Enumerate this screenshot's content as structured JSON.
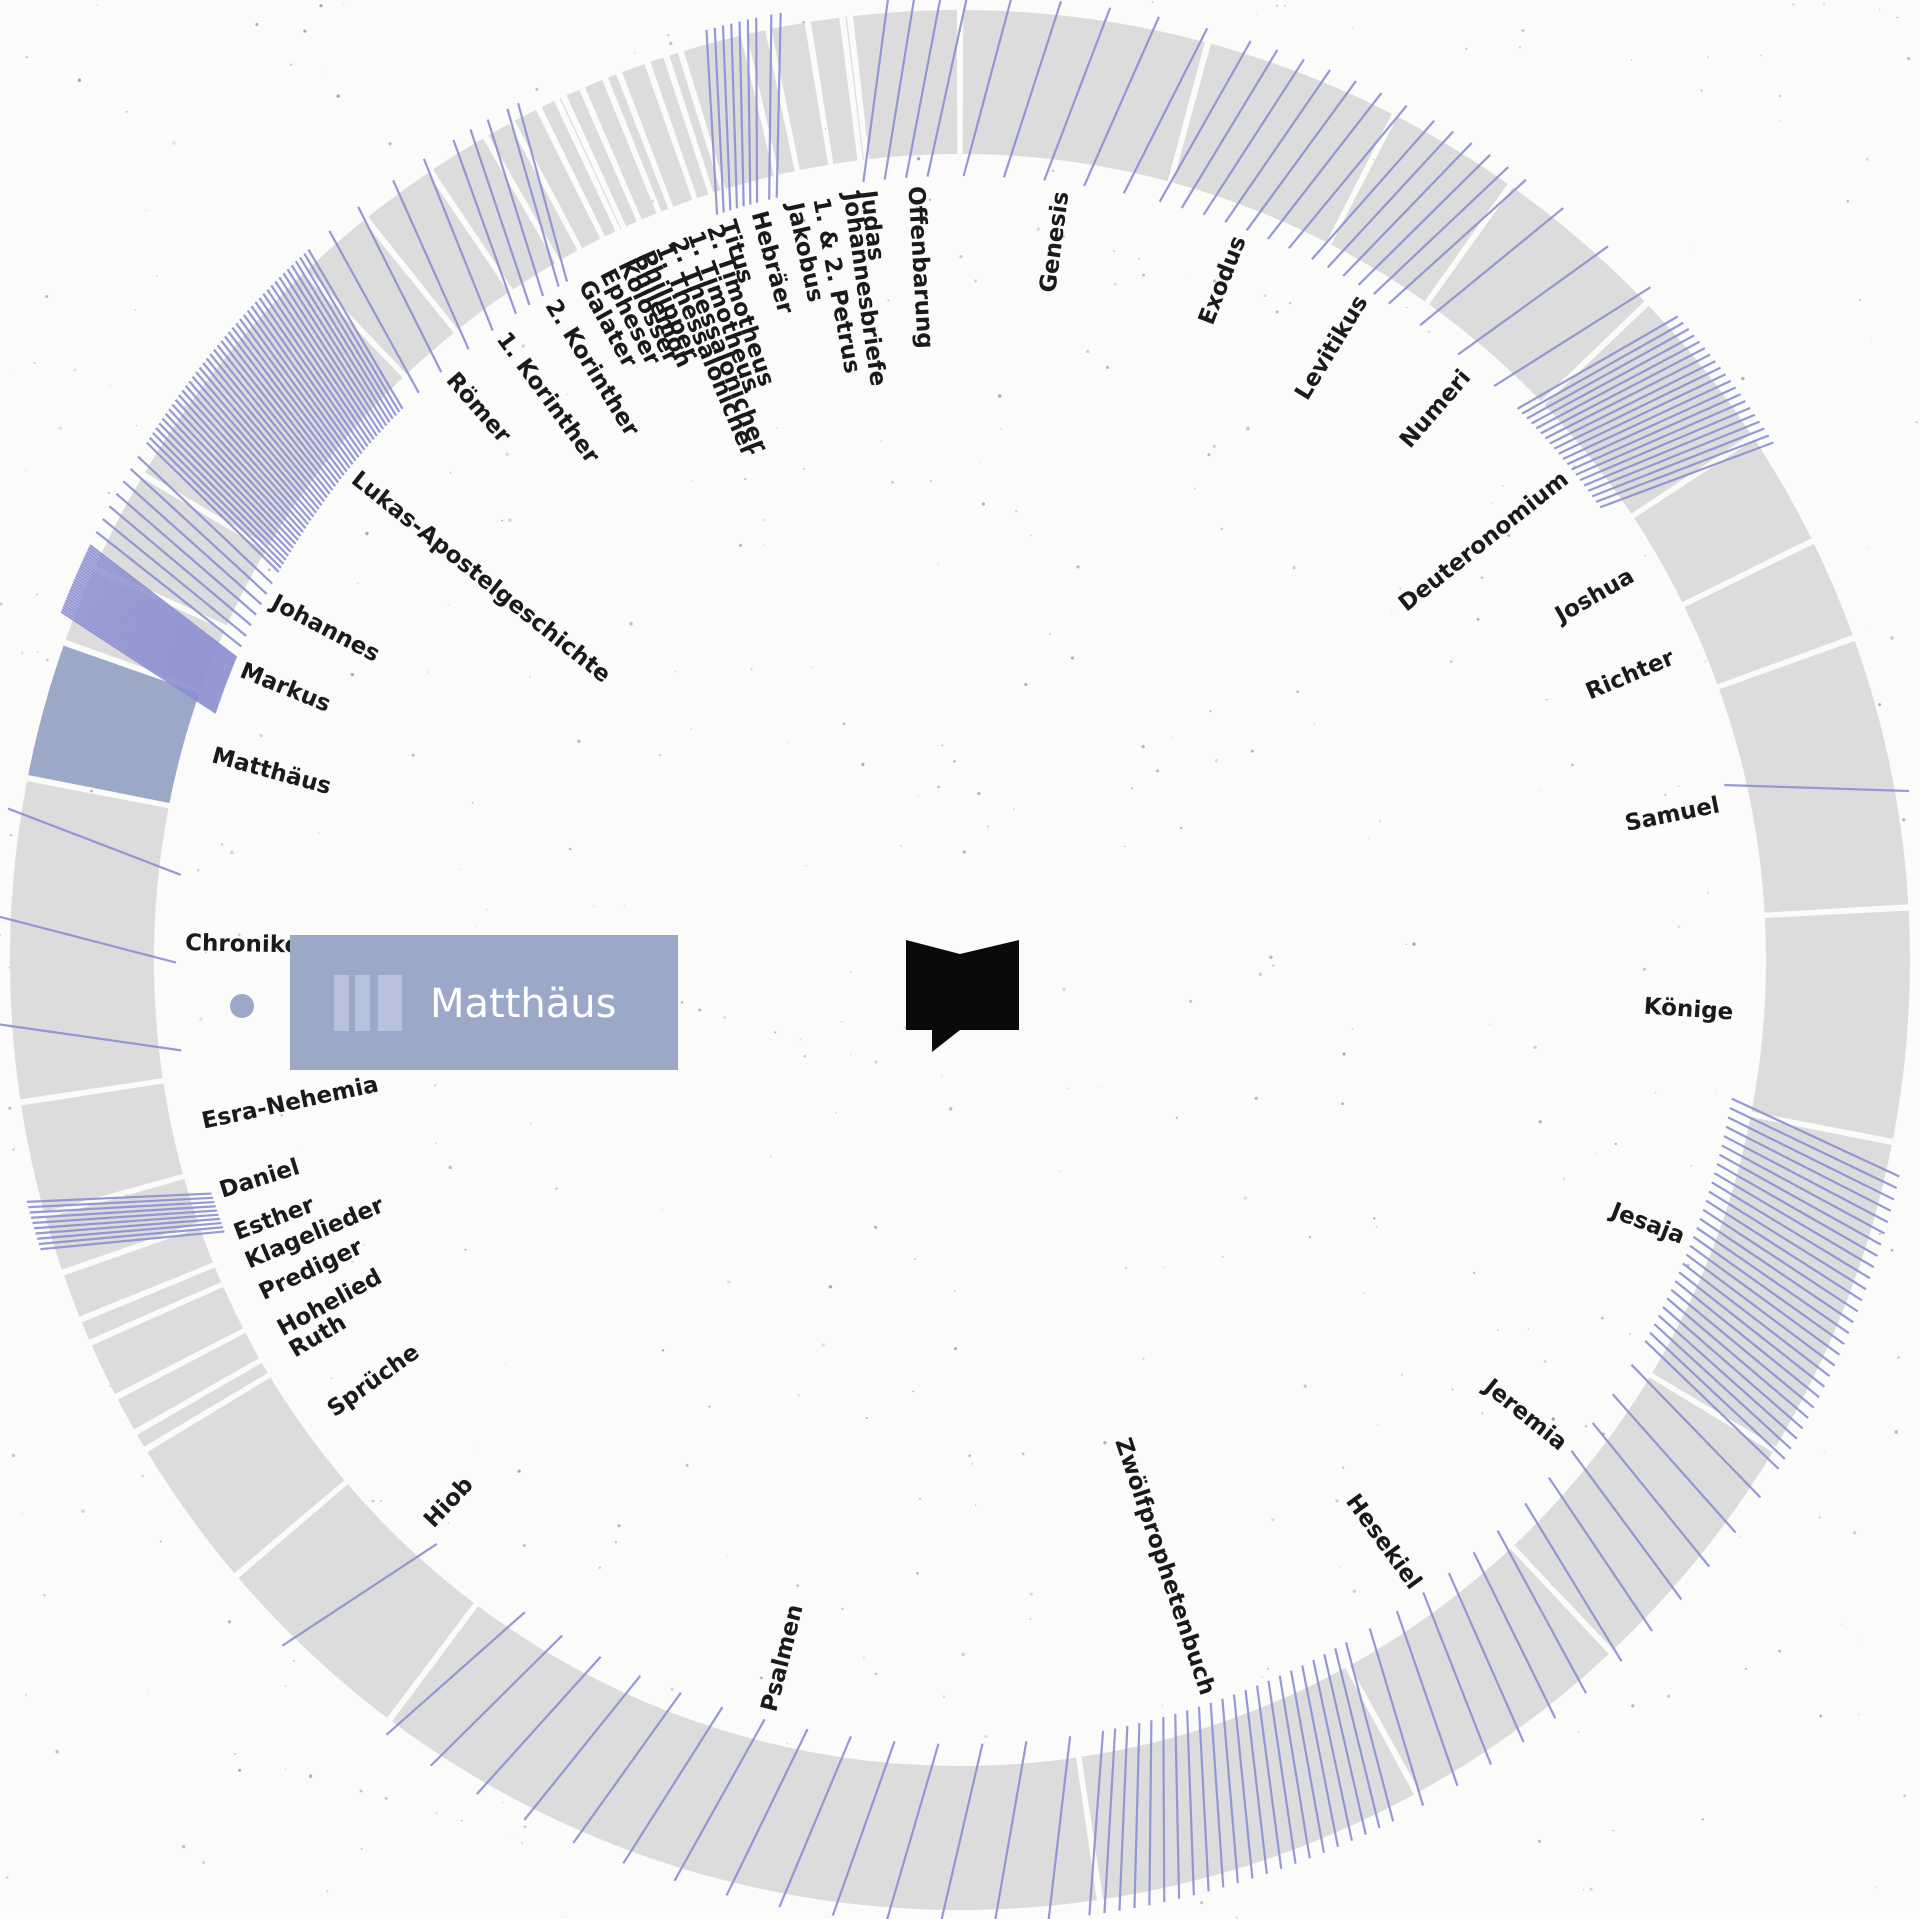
{
  "selected": "Matthäus",
  "colors": {
    "segment": "#dcdcdc",
    "active": "#9ba8c7",
    "reference": "#8b8fd0"
  },
  "icons": {
    "center": "open-book-icon",
    "callout": "book-stack-icon"
  },
  "chart_data": {
    "type": "radial-arc",
    "books": [
      {
        "name": "Genesis",
        "weight": 50
      },
      {
        "name": "Exodus",
        "weight": 40
      },
      {
        "name": "Levitikus",
        "weight": 27
      },
      {
        "name": "Numeri",
        "weight": 36
      },
      {
        "name": "Deuteronomium",
        "weight": 34
      },
      {
        "name": "Joshua",
        "weight": 24
      },
      {
        "name": "Richter",
        "weight": 21
      },
      {
        "name": "Samuel",
        "weight": 55
      },
      {
        "name": "Könige",
        "weight": 47
      },
      {
        "name": "Jesaja",
        "weight": 66
      },
      {
        "name": "Jeremia",
        "weight": 52
      },
      {
        "name": "Hesekiel",
        "weight": 48
      },
      {
        "name": "Zwölfprophetenbuch",
        "weight": 67
      },
      {
        "name": "Psalmen",
        "weight": 150
      },
      {
        "name": "Hiob",
        "weight": 42
      },
      {
        "name": "Sprüche",
        "weight": 31
      },
      {
        "name": "Ruth",
        "weight": 4
      },
      {
        "name": "Hohelied",
        "weight": 8
      },
      {
        "name": "Prediger",
        "weight": 12
      },
      {
        "name": "Klagelieder",
        "weight": 5
      },
      {
        "name": "Esther",
        "weight": 10
      },
      {
        "name": "Daniel",
        "weight": 12
      },
      {
        "name": "Esra-Nehemia",
        "weight": 23
      },
      {
        "name": "Chroniken",
        "weight": 65
      },
      {
        "name": "Matthäus",
        "weight": 28
      },
      {
        "name": "Markus",
        "weight": 16
      },
      {
        "name": "Johannes",
        "weight": 21
      },
      {
        "name": "Lukas-Apostelgeschichte",
        "weight": 52
      },
      {
        "name": "Römer",
        "weight": 16
      },
      {
        "name": "1. Korinther",
        "weight": 16
      },
      {
        "name": "2. Korinther",
        "weight": 13
      },
      {
        "name": "Galater",
        "weight": 6
      },
      {
        "name": "Epheser",
        "weight": 6
      },
      {
        "name": "Kolosser",
        "weight": 4
      },
      {
        "name": "Philemon",
        "weight": 1.5
      },
      {
        "name": "Philipper",
        "weight": 4
      },
      {
        "name": "1. Thessalonicher",
        "weight": 5
      },
      {
        "name": "2. Thessalonicher",
        "weight": 3
      },
      {
        "name": "1. Timotheus",
        "weight": 6
      },
      {
        "name": "2. Timotheus",
        "weight": 4
      },
      {
        "name": "Titus",
        "weight": 3
      },
      {
        "name": "Hebräer",
        "weight": 13
      },
      {
        "name": "Jakobus",
        "weight": 5
      },
      {
        "name": "1. & 2. Petrus",
        "weight": 8
      },
      {
        "name": "Johannesbriefe",
        "weight": 7
      },
      {
        "name": "Judas",
        "weight": 1.5
      },
      {
        "name": "Offenbarung",
        "weight": 22
      }
    ],
    "references": [
      {
        "book": "Genesis",
        "count": 5
      },
      {
        "book": "Exodus",
        "count": 7
      },
      {
        "book": "Levitikus",
        "count": 6
      },
      {
        "book": "Numeri",
        "count": 3
      },
      {
        "book": "Deuteronomium",
        "count": 20
      },
      {
        "book": "Samuel",
        "count": 1
      },
      {
        "book": "Jesaja",
        "count": 28
      },
      {
        "book": "Jeremia",
        "count": 6
      },
      {
        "book": "Hesekiel",
        "count": 6
      },
      {
        "book": "Zwölfprophetenbuch",
        "count": 22
      },
      {
        "book": "Psalmen",
        "count": 14
      },
      {
        "book": "Hiob",
        "count": 1
      },
      {
        "book": "Daniel",
        "count": 10
      },
      {
        "book": "Chroniken",
        "count": 3
      },
      {
        "book": "Markus",
        "count": 30
      },
      {
        "book": "Johannes",
        "count": 7
      },
      {
        "book": "Lukas-Apostelgeschichte",
        "count": 45
      },
      {
        "book": "Römer",
        "count": 2
      },
      {
        "book": "1. Korinther",
        "count": 2
      },
      {
        "book": "2. Korinther",
        "count": 3
      },
      {
        "book": "Galater",
        "count": 2
      },
      {
        "book": "Hebräer",
        "count": 7
      },
      {
        "book": "Jakobus",
        "count": 2
      },
      {
        "book": "Offenbarung",
        "count": 4
      }
    ]
  }
}
